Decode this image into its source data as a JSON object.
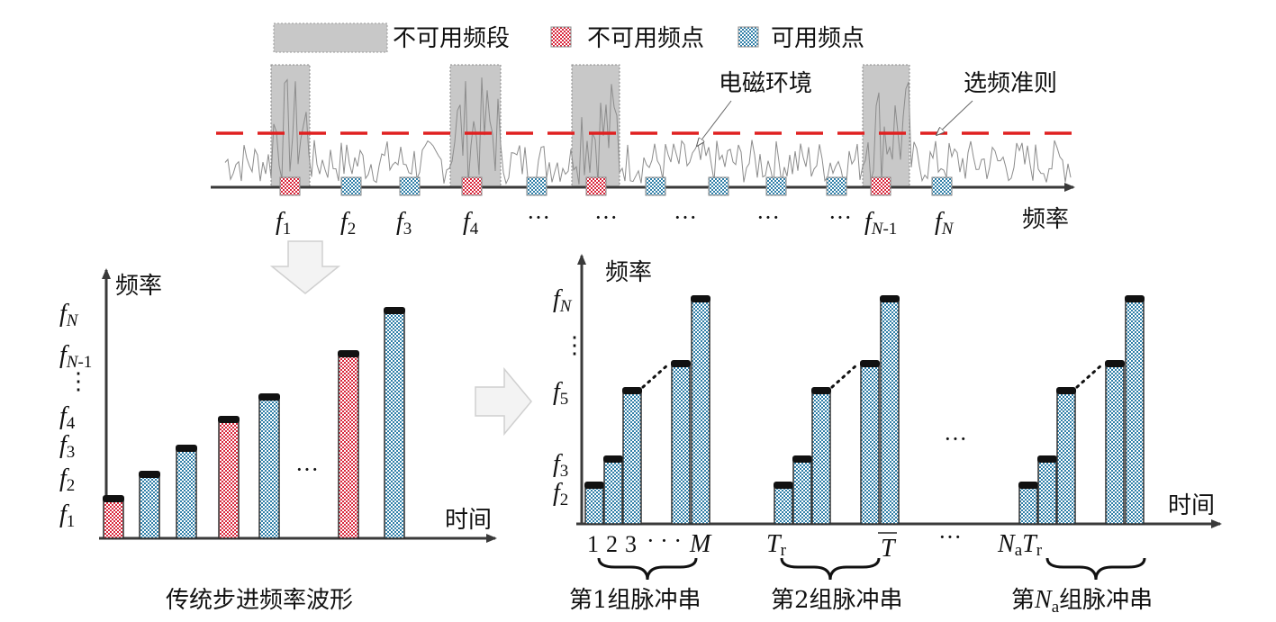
{
  "colors": {
    "band": "#c8c8c8",
    "unavailable_fg": "#d9263b",
    "available_fg": "#2f7fa8",
    "threshold": "#e02020",
    "noise": "#8c8c8c",
    "axis": "#3a3a3a",
    "cap": "#111111"
  },
  "legend": {
    "band_label": "不可用频段",
    "unavailable_label": "不可用频点",
    "available_label": "可用频点"
  },
  "top": {
    "env_label": "电磁环境",
    "criterion_label": "选频准则",
    "axis_label": "频率",
    "ticks": [
      {
        "base": "f",
        "sub": "1"
      },
      {
        "base": "f",
        "sub": "2"
      },
      {
        "base": "f",
        "sub": "3"
      },
      {
        "base": "f",
        "sub": "4"
      },
      {
        "text": "···"
      },
      {
        "text": "···"
      },
      {
        "text": "···"
      },
      {
        "text": "···"
      },
      {
        "text": "···"
      },
      {
        "base": "f",
        "sub": "N-1"
      },
      {
        "base": "f",
        "sub": "N"
      }
    ],
    "markers": [
      "unavailable",
      "available",
      "available",
      "unavailable",
      "available",
      "unavailable",
      "available",
      "available",
      "available",
      "available",
      "unavailable",
      "available"
    ]
  },
  "left": {
    "y_axis_label": "频率",
    "x_axis_label": "时间",
    "caption": "传统步进频率波形",
    "y_labels": [
      {
        "base": "f",
        "sub": "N"
      },
      {
        "base": "f",
        "sub": "N-1"
      },
      {
        "text": "⋮"
      },
      {
        "base": "f",
        "sub": "4"
      },
      {
        "base": "f",
        "sub": "3"
      },
      {
        "base": "f",
        "sub": "2"
      },
      {
        "base": "f",
        "sub": "1"
      }
    ],
    "bars": [
      {
        "level": 1,
        "kind": "unavailable"
      },
      {
        "level": 2,
        "kind": "available"
      },
      {
        "level": 3,
        "kind": "available"
      },
      {
        "level": 4,
        "kind": "unavailable"
      },
      {
        "level": 5,
        "kind": "available"
      },
      {
        "level": 6,
        "kind": "unavailable"
      },
      {
        "level": 7,
        "kind": "available"
      }
    ],
    "gap_label": "···"
  },
  "right": {
    "y_axis_label": "频率",
    "x_axis_label": "时间",
    "y_labels": [
      {
        "base": "f",
        "sub": "N"
      },
      {
        "text": "⋮"
      },
      {
        "base": "f",
        "sub": "5"
      },
      {
        "base": "f",
        "sub": "3"
      },
      {
        "base": "f",
        "sub": "2"
      }
    ],
    "group_levels": [
      1,
      2,
      3,
      4,
      5
    ],
    "x_labels": {
      "first": [
        "1",
        "2",
        "3",
        "· · ·",
        "M"
      ],
      "tr": {
        "base": "T",
        "sub": "r"
      },
      "t": "T",
      "dots": "···",
      "natr": {
        "a": "N",
        "a_sub": "a",
        "b": "T",
        "b_sub": "r"
      }
    },
    "groups": [
      {
        "caption": "第1组脉冲串"
      },
      {
        "caption": "第2组脉冲串"
      },
      {
        "caption_pre": "第",
        "caption_var": "N",
        "caption_sub": "a",
        "caption_post": "组脉冲串"
      }
    ],
    "between_dots": "···"
  }
}
